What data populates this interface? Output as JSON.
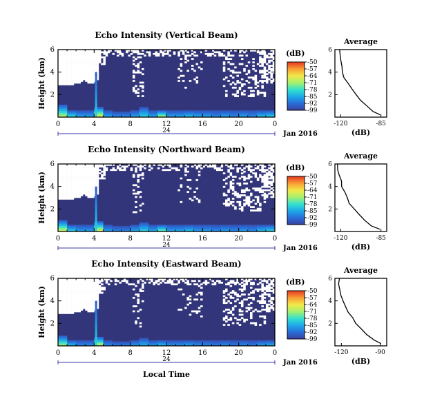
{
  "figure": {
    "x_title": "Local Time",
    "date_label": "Jan 2016",
    "day_label": "24",
    "units_label": "(dB)",
    "average_title": "Average",
    "y_title": "Height (km)"
  },
  "chart_data": [
    {
      "type": "heatmap",
      "title": "Echo Intensity (Vertical Beam)",
      "xlabel": "",
      "ylabel": "Height (km)",
      "xticks": [
        "0",
        "4",
        "8",
        "12",
        "16",
        "20",
        "0"
      ],
      "xlim": [
        0,
        24
      ],
      "yticks": [
        "2",
        "4",
        "6"
      ],
      "ylim": [
        0,
        6
      ],
      "colorbar": {
        "label": "(dB)",
        "ticks": [
          "-50",
          "-57",
          "-64",
          "-71",
          "-78",
          "-85",
          "-92",
          "-99"
        ],
        "range": [
          -99,
          -50
        ]
      },
      "low_layer_top_km": [
        1.1,
        0.6,
        0.6,
        0.6,
        0.9,
        0.6,
        0.5,
        0.5,
        0.6,
        0.9,
        0.6,
        0.6,
        0.6,
        0.6,
        0.6,
        0.6,
        0.6,
        0.6,
        0.6,
        0.6,
        0.6,
        0.6,
        0.6,
        0.6
      ],
      "peak_dB": [
        -70,
        -78,
        -85,
        -85,
        -65,
        -85,
        -88,
        -88,
        -85,
        -80,
        -85,
        -70,
        -85,
        -85,
        -82,
        -85,
        -85,
        -88,
        -85,
        -88,
        -85,
        -88,
        -82,
        -80
      ],
      "average": {
        "title": "Average",
        "xlabel": "(dB)",
        "xticks": [
          "-120",
          "-85"
        ],
        "xlim": [
          -125,
          -80
        ],
        "yticks": [
          "2",
          "4",
          "6"
        ],
        "ylim": [
          0,
          6
        ],
        "height_km": [
          0.2,
          0.5,
          1.0,
          1.5,
          2.0,
          2.5,
          3.0,
          3.5,
          4.0,
          4.5,
          5.0,
          5.5,
          6.0
        ],
        "value_dB": [
          -85,
          -92,
          -98,
          -103,
          -107,
          -111,
          -114,
          -117,
          -118,
          -119,
          -120,
          -121,
          -121
        ]
      }
    },
    {
      "type": "heatmap",
      "title": "Echo Intensity (Northward Beam)",
      "xlabel": "",
      "ylabel": "Height (km)",
      "xticks": [
        "0",
        "4",
        "8",
        "12",
        "16",
        "20",
        "0"
      ],
      "xlim": [
        0,
        24
      ],
      "yticks": [
        "2",
        "4",
        "6"
      ],
      "ylim": [
        0,
        6
      ],
      "colorbar": {
        "label": "(dB)",
        "ticks": [
          "-50",
          "-57",
          "-64",
          "-71",
          "-78",
          "-85",
          "-92",
          "-99"
        ],
        "range": [
          -99,
          -50
        ]
      },
      "low_layer_top_km": [
        1.0,
        0.6,
        0.6,
        0.6,
        0.9,
        0.6,
        0.5,
        0.5,
        0.6,
        0.8,
        0.6,
        0.6,
        0.6,
        0.6,
        0.6,
        0.6,
        0.6,
        0.6,
        0.6,
        0.6,
        0.6,
        0.6,
        0.6,
        0.6
      ],
      "peak_dB": [
        -68,
        -80,
        -86,
        -86,
        -66,
        -86,
        -89,
        -89,
        -85,
        -80,
        -85,
        -74,
        -85,
        -85,
        -82,
        -86,
        -86,
        -88,
        -86,
        -88,
        -86,
        -88,
        -83,
        -80
      ],
      "average": {
        "title": "Average",
        "xlabel": "(dB)",
        "xticks": [
          "-120",
          "-85"
        ],
        "xlim": [
          -125,
          -80
        ],
        "yticks": [
          "2",
          "4",
          "6"
        ],
        "ylim": [
          0,
          6
        ],
        "height_km": [
          0.2,
          0.5,
          1.0,
          1.5,
          2.0,
          2.5,
          3.0,
          3.5,
          4.0,
          4.5,
          5.0,
          5.5,
          6.0
        ],
        "value_dB": [
          -86,
          -93,
          -99,
          -104,
          -108,
          -112,
          -115,
          -117,
          -119,
          -120,
          -121,
          -122,
          -122
        ]
      }
    },
    {
      "type": "heatmap",
      "title": "Echo Intensity (Eastward Beam)",
      "xlabel": "Local Time",
      "ylabel": "Height (km)",
      "xticks": [
        "0",
        "4",
        "8",
        "12",
        "16",
        "20",
        "0"
      ],
      "xlim": [
        0,
        24
      ],
      "yticks": [
        "2",
        "4",
        "6"
      ],
      "ylim": [
        0,
        6
      ],
      "colorbar": {
        "label": "(dB)",
        "ticks": [
          "-50",
          "-57",
          "-64",
          "-71",
          "-78",
          "-85",
          "-92",
          "-99"
        ],
        "range": [
          -99,
          -50
        ]
      },
      "low_layer_top_km": [
        0.9,
        0.5,
        0.5,
        0.5,
        0.8,
        0.5,
        0.4,
        0.4,
        0.5,
        0.7,
        0.5,
        0.5,
        0.5,
        0.5,
        0.5,
        0.5,
        0.5,
        0.5,
        0.5,
        0.5,
        0.5,
        0.5,
        0.5,
        0.5
      ],
      "peak_dB": [
        -72,
        -82,
        -88,
        -88,
        -68,
        -88,
        -90,
        -90,
        -87,
        -84,
        -87,
        -82,
        -87,
        -87,
        -85,
        -88,
        -88,
        -90,
        -88,
        -90,
        -88,
        -90,
        -86,
        -84
      ],
      "average": {
        "title": "Average",
        "xlabel": "(dB)",
        "xticks": [
          "-120",
          "-90"
        ],
        "xlim": [
          -125,
          -85
        ],
        "yticks": [
          "2",
          "4",
          "6"
        ],
        "ylim": [
          0,
          6
        ],
        "height_km": [
          0.2,
          0.5,
          1.0,
          1.5,
          2.0,
          2.5,
          3.0,
          3.5,
          4.0,
          4.5,
          5.0,
          5.5,
          6.0
        ],
        "value_dB": [
          -90,
          -95,
          -100,
          -105,
          -109,
          -112,
          -115,
          -117,
          -119,
          -120,
          -121,
          -122,
          -122
        ]
      }
    }
  ],
  "colors": {
    "background_fill": "#33357a",
    "colormap": [
      "#3a3f9a",
      "#2a6cd8",
      "#1ea7e8",
      "#33e0d0",
      "#a4f070",
      "#f2e94a",
      "#f9a035",
      "#e83a22"
    ]
  }
}
